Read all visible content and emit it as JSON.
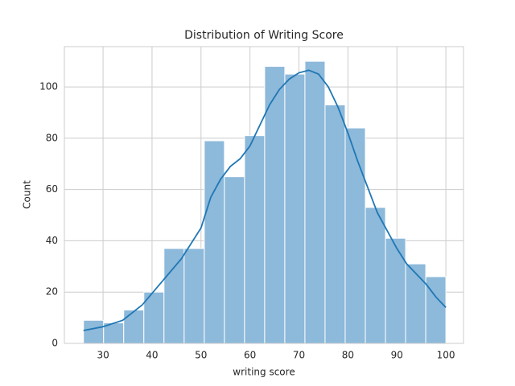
{
  "chart_data": {
    "type": "histogram",
    "title": "Distribution of Writing Score",
    "x_label": "writing score",
    "y_label": "Count",
    "bins": [
      26,
      30.11,
      34.22,
      38.33,
      42.44,
      46.56,
      50.67,
      54.78,
      58.89,
      63,
      67.11,
      71.22,
      75.33,
      79.44,
      83.56,
      87.67,
      91.78,
      95.89,
      100
    ],
    "counts": [
      9,
      8,
      13,
      20,
      37,
      37,
      79,
      65,
      81,
      108,
      105,
      110,
      93,
      84,
      53,
      41,
      31,
      26
    ],
    "color": "#8db9da",
    "kde": {
      "color": "#1f77b4",
      "x": [
        26,
        30,
        34,
        38,
        42,
        46,
        50,
        52,
        54,
        56,
        58,
        60,
        62,
        64,
        66,
        68,
        70,
        72,
        74,
        76,
        78,
        80,
        82,
        84,
        86,
        88,
        90,
        92,
        94,
        96,
        98,
        100
      ],
      "values": [
        5,
        6.5,
        9,
        15,
        24,
        33,
        45,
        57,
        64,
        69,
        72,
        77,
        85,
        93,
        99,
        103,
        105.5,
        106.5,
        105,
        100,
        92,
        82,
        71,
        61,
        51,
        44,
        37,
        31,
        27,
        23,
        18,
        14
      ]
    },
    "xlim": [
      22.1,
      103.6
    ],
    "ylim": [
      0,
      115.7
    ],
    "xticks": [
      30,
      40,
      50,
      60,
      70,
      80,
      90,
      100
    ],
    "yticks": [
      0,
      20,
      40,
      60,
      80,
      100
    ],
    "grid": true
  }
}
